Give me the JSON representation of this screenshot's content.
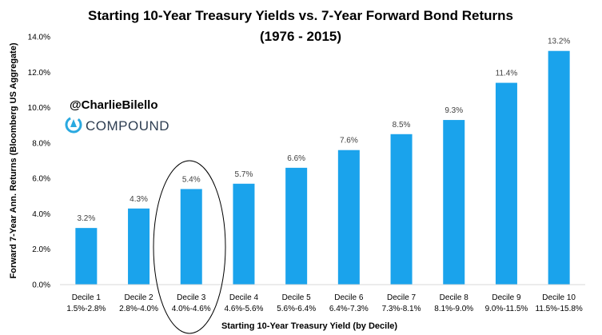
{
  "chart_data": {
    "type": "bar",
    "title": "Starting 10-Year Treasury Yields vs. 7-Year Forward Bond Returns",
    "subtitle": "(1976 - 2015)",
    "xlabel": "Starting 10-Year Treasury Yield (by Decile)",
    "ylabel": "Forward 7-Year Ann. Returns (Bloomberg US Aggregate)",
    "ylim": [
      0,
      14
    ],
    "yticks": [
      "0.0%",
      "2.0%",
      "4.0%",
      "6.0%",
      "8.0%",
      "10.0%",
      "12.0%",
      "14.0%"
    ],
    "grid": false,
    "legend": "none",
    "bar_color": "#1aa3ec",
    "categories": [
      "Decile 1",
      "Decile 2",
      "Decile 3",
      "Decile 4",
      "Decile 5",
      "Decile 6",
      "Decile 7",
      "Decile 8",
      "Decile 9",
      "Decile 10"
    ],
    "ranges": [
      "1.5%-2.8%",
      "2.8%-4.0%",
      "4.0%-4.6%",
      "4.6%-5.6%",
      "5.6%-6.4%",
      "6.4%-7.3%",
      "7.3%-8.1%",
      "8.1%-9.0%",
      "9.0%-11.5%",
      "11.5%-15.8%"
    ],
    "values": [
      3.2,
      4.3,
      5.4,
      5.7,
      6.6,
      7.6,
      8.5,
      9.3,
      11.4,
      13.2
    ],
    "labels": [
      "3.2%",
      "4.3%",
      "5.4%",
      "5.7%",
      "6.6%",
      "7.6%",
      "8.5%",
      "9.3%",
      "11.4%",
      "13.2%"
    ],
    "highlight": "Decile 3"
  },
  "branding": {
    "handle": "@CharlieBilello",
    "logo_text": "COMPOUND",
    "logo_color": "#2aa9e0"
  }
}
